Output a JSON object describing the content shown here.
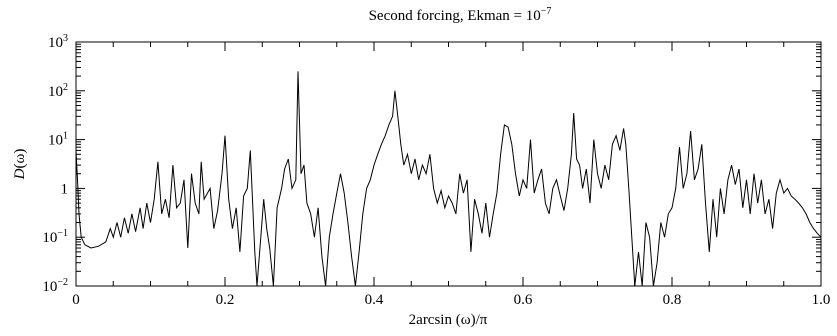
{
  "chart_data": {
    "type": "line",
    "title_prefix": "Second forcing, Ekman = 10",
    "title_exponent": "−7",
    "xlabel": "2arcsin (ω)/π",
    "ylabel_symbol": "D",
    "ylabel_arg": "(ω)",
    "xlim": [
      0,
      1
    ],
    "ylim": [
      0.01,
      1000
    ],
    "y_scale": "log",
    "grid": false,
    "legend": "none",
    "line_color": "#000000",
    "x_ticks": [
      {
        "value": 0,
        "label": "0"
      },
      {
        "value": 0.2,
        "label": "0.2"
      },
      {
        "value": 0.4,
        "label": "0.4"
      },
      {
        "value": 0.6,
        "label": "0.6"
      },
      {
        "value": 0.8,
        "label": "0.8"
      },
      {
        "value": 1.0,
        "label": "1.0"
      }
    ],
    "y_ticks": [
      {
        "value": 0.01,
        "base": "10",
        "exp": "−2"
      },
      {
        "value": 0.1,
        "base": "10",
        "exp": "−1"
      },
      {
        "value": 1,
        "base": "1",
        "exp": ""
      },
      {
        "value": 10,
        "base": "10",
        "exp": "1"
      },
      {
        "value": 100,
        "base": "10",
        "exp": "2"
      },
      {
        "value": 1000,
        "base": "10",
        "exp": "3"
      }
    ],
    "series": [
      {
        "points": [
          [
            0.0,
            6.0
          ],
          [
            0.002,
            1.5
          ],
          [
            0.004,
            0.3
          ],
          [
            0.007,
            0.1
          ],
          [
            0.012,
            0.07
          ],
          [
            0.02,
            0.06
          ],
          [
            0.03,
            0.065
          ],
          [
            0.04,
            0.08
          ],
          [
            0.046,
            0.15
          ],
          [
            0.05,
            0.1
          ],
          [
            0.055,
            0.2
          ],
          [
            0.06,
            0.1
          ],
          [
            0.065,
            0.25
          ],
          [
            0.07,
            0.12
          ],
          [
            0.075,
            0.3
          ],
          [
            0.08,
            0.13
          ],
          [
            0.086,
            0.4
          ],
          [
            0.09,
            0.15
          ],
          [
            0.095,
            0.5
          ],
          [
            0.1,
            0.2
          ],
          [
            0.105,
            0.6
          ],
          [
            0.11,
            3.5
          ],
          [
            0.115,
            0.3
          ],
          [
            0.12,
            0.6
          ],
          [
            0.125,
            0.25
          ],
          [
            0.13,
            3.0
          ],
          [
            0.135,
            0.4
          ],
          [
            0.14,
            0.5
          ],
          [
            0.145,
            1.5
          ],
          [
            0.15,
            0.06
          ],
          [
            0.155,
            2.0
          ],
          [
            0.16,
            0.5
          ],
          [
            0.165,
            0.3
          ],
          [
            0.168,
            3.5
          ],
          [
            0.172,
            0.6
          ],
          [
            0.18,
            1.0
          ],
          [
            0.185,
            0.15
          ],
          [
            0.19,
            0.35
          ],
          [
            0.196,
            2.0
          ],
          [
            0.2,
            12.0
          ],
          [
            0.205,
            0.6
          ],
          [
            0.21,
            0.15
          ],
          [
            0.215,
            0.4
          ],
          [
            0.22,
            0.05
          ],
          [
            0.225,
            0.7
          ],
          [
            0.23,
            1.0
          ],
          [
            0.234,
            6.0
          ],
          [
            0.24,
            0.05
          ],
          [
            0.243,
            0.01
          ],
          [
            0.248,
            0.1
          ],
          [
            0.252,
            0.6
          ],
          [
            0.256,
            0.15
          ],
          [
            0.26,
            0.06
          ],
          [
            0.265,
            0.01
          ],
          [
            0.27,
            0.4
          ],
          [
            0.276,
            1.0
          ],
          [
            0.28,
            2.5
          ],
          [
            0.285,
            4.0
          ],
          [
            0.29,
            1.0
          ],
          [
            0.295,
            1.5
          ],
          [
            0.298,
            250.0
          ],
          [
            0.302,
            2.0
          ],
          [
            0.306,
            3.0
          ],
          [
            0.31,
            0.5
          ],
          [
            0.315,
            0.3
          ],
          [
            0.32,
            0.1
          ],
          [
            0.325,
            0.4
          ],
          [
            0.33,
            0.04
          ],
          [
            0.335,
            0.01
          ],
          [
            0.34,
            0.1
          ],
          [
            0.345,
            0.3
          ],
          [
            0.35,
            0.8
          ],
          [
            0.355,
            2.0
          ],
          [
            0.36,
            0.8
          ],
          [
            0.365,
            0.2
          ],
          [
            0.37,
            0.04
          ],
          [
            0.375,
            0.01
          ],
          [
            0.38,
            0.05
          ],
          [
            0.385,
            0.3
          ],
          [
            0.39,
            1.0
          ],
          [
            0.395,
            1.5
          ],
          [
            0.4,
            3.0
          ],
          [
            0.405,
            5.0
          ],
          [
            0.41,
            8.0
          ],
          [
            0.415,
            12.0
          ],
          [
            0.42,
            20.0
          ],
          [
            0.425,
            30.0
          ],
          [
            0.428,
            100.0
          ],
          [
            0.432,
            30.0
          ],
          [
            0.436,
            8.0
          ],
          [
            0.44,
            3.0
          ],
          [
            0.445,
            5.0
          ],
          [
            0.45,
            2.0
          ],
          [
            0.455,
            4.0
          ],
          [
            0.46,
            1.5
          ],
          [
            0.465,
            3.0
          ],
          [
            0.47,
            2.0
          ],
          [
            0.475,
            5.0
          ],
          [
            0.48,
            1.0
          ],
          [
            0.485,
            0.5
          ],
          [
            0.49,
            0.9
          ],
          [
            0.495,
            0.4
          ],
          [
            0.5,
            0.7
          ],
          [
            0.505,
            0.5
          ],
          [
            0.51,
            0.3
          ],
          [
            0.515,
            2.0
          ],
          [
            0.52,
            0.8
          ],
          [
            0.525,
            1.5
          ],
          [
            0.53,
            0.05
          ],
          [
            0.535,
            0.6
          ],
          [
            0.54,
            0.3
          ],
          [
            0.545,
            0.12
          ],
          [
            0.55,
            0.5
          ],
          [
            0.555,
            0.1
          ],
          [
            0.56,
            0.3
          ],
          [
            0.565,
            0.8
          ],
          [
            0.57,
            5.0
          ],
          [
            0.575,
            20.0
          ],
          [
            0.58,
            18.0
          ],
          [
            0.585,
            8.0
          ],
          [
            0.59,
            2.0
          ],
          [
            0.595,
            0.7
          ],
          [
            0.6,
            1.5
          ],
          [
            0.605,
            1.0
          ],
          [
            0.61,
            10.0
          ],
          [
            0.615,
            0.8
          ],
          [
            0.62,
            1.5
          ],
          [
            0.625,
            2.5
          ],
          [
            0.63,
            0.5
          ],
          [
            0.635,
            0.3
          ],
          [
            0.64,
            1.0
          ],
          [
            0.645,
            1.5
          ],
          [
            0.65,
            0.7
          ],
          [
            0.655,
            0.35
          ],
          [
            0.66,
            1.0
          ],
          [
            0.665,
            5.0
          ],
          [
            0.668,
            35.0
          ],
          [
            0.672,
            4.0
          ],
          [
            0.676,
            3.0
          ],
          [
            0.68,
            1.0
          ],
          [
            0.685,
            2.5
          ],
          [
            0.69,
            0.5
          ],
          [
            0.695,
            10.0
          ],
          [
            0.7,
            2.0
          ],
          [
            0.705,
            1.0
          ],
          [
            0.71,
            3.0
          ],
          [
            0.715,
            1.5
          ],
          [
            0.72,
            8.0
          ],
          [
            0.725,
            12.0
          ],
          [
            0.73,
            6.0
          ],
          [
            0.735,
            17.0
          ],
          [
            0.738,
            8.0
          ],
          [
            0.742,
            1.0
          ],
          [
            0.746,
            0.1
          ],
          [
            0.75,
            0.01
          ],
          [
            0.755,
            0.05
          ],
          [
            0.76,
            0.01
          ],
          [
            0.765,
            0.2
          ],
          [
            0.77,
            0.1
          ],
          [
            0.775,
            0.01
          ],
          [
            0.78,
            0.03
          ],
          [
            0.785,
            0.2
          ],
          [
            0.79,
            0.1
          ],
          [
            0.795,
            0.3
          ],
          [
            0.8,
            0.4
          ],
          [
            0.805,
            1.0
          ],
          [
            0.81,
            7.0
          ],
          [
            0.815,
            1.0
          ],
          [
            0.82,
            2.0
          ],
          [
            0.825,
            15.0
          ],
          [
            0.83,
            1.5
          ],
          [
            0.835,
            2.5
          ],
          [
            0.84,
            8.0
          ],
          [
            0.845,
            0.5
          ],
          [
            0.85,
            0.05
          ],
          [
            0.855,
            0.6
          ],
          [
            0.86,
            0.1
          ],
          [
            0.865,
            1.0
          ],
          [
            0.87,
            0.3
          ],
          [
            0.875,
            1.5
          ],
          [
            0.88,
            3.0
          ],
          [
            0.885,
            1.2
          ],
          [
            0.89,
            2.5
          ],
          [
            0.895,
            0.4
          ],
          [
            0.9,
            1.5
          ],
          [
            0.905,
            0.3
          ],
          [
            0.91,
            2.0
          ],
          [
            0.915,
            0.5
          ],
          [
            0.92,
            1.5
          ],
          [
            0.925,
            0.3
          ],
          [
            0.93,
            0.6
          ],
          [
            0.935,
            0.15
          ],
          [
            0.94,
            0.8
          ],
          [
            0.945,
            1.5
          ],
          [
            0.95,
            0.8
          ],
          [
            0.955,
            1.0
          ],
          [
            0.96,
            0.7
          ],
          [
            0.965,
            0.6
          ],
          [
            0.97,
            0.5
          ],
          [
            0.975,
            0.4
          ],
          [
            0.98,
            0.3
          ],
          [
            0.985,
            0.2
          ],
          [
            0.99,
            0.15
          ],
          [
            0.995,
            0.12
          ],
          [
            1.0,
            0.1
          ]
        ]
      }
    ]
  }
}
